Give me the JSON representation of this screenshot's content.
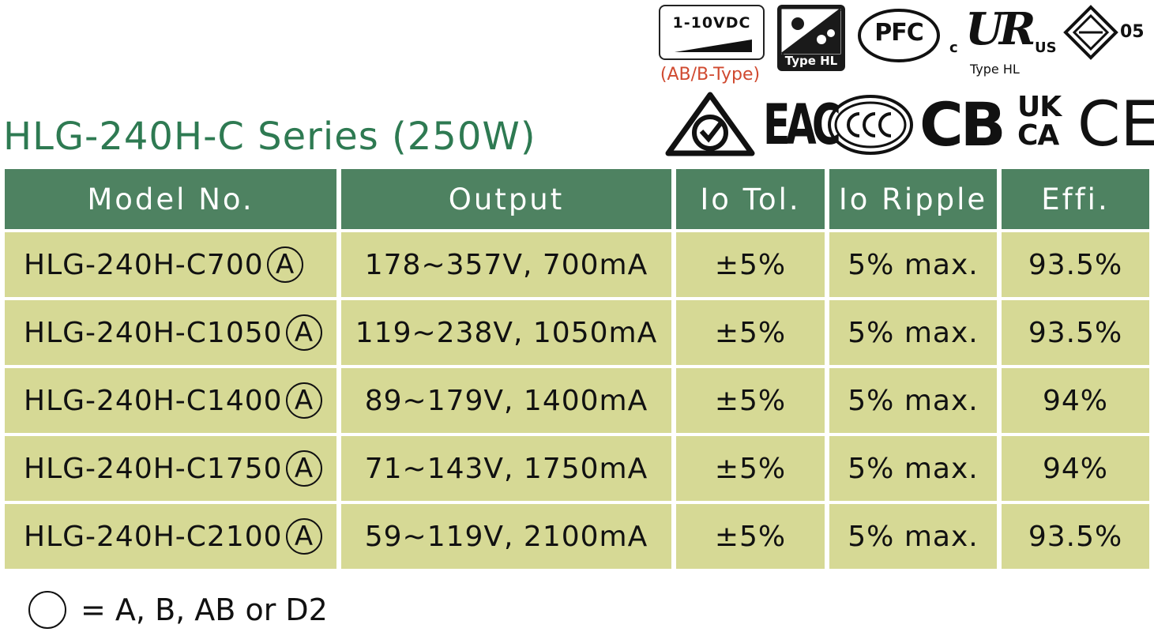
{
  "title": "HLG-240H-C Series (250W)",
  "certifications": {
    "dimming_label": "1-10VDC",
    "dimming_type": "(AB/B-Type)",
    "type_hl_label": "Type HL",
    "pfc_label": "PFC",
    "ul_c": "c",
    "ul_us": "US",
    "ul_mark": "UR",
    "ul_type": "Type HL",
    "enec_number": "05",
    "eac_label": "EAC",
    "cb_label": "CB",
    "ukca_top": "UK",
    "ukca_bottom": "CA",
    "ce_label": "CE"
  },
  "table": {
    "headers": [
      "Model No.",
      "Output",
      "Io Tol.",
      "Io Ripple",
      "Effi."
    ],
    "circled_mark": "A",
    "rows": [
      {
        "model": "HLG-240H-C700",
        "output": "178~357V, 700mA",
        "tol": "±5%",
        "ripple": "5% max.",
        "effi": "93.5%"
      },
      {
        "model": "HLG-240H-C1050",
        "output": "119~238V, 1050mA",
        "tol": "±5%",
        "ripple": "5% max.",
        "effi": "93.5%"
      },
      {
        "model": "HLG-240H-C1400",
        "output": "89~179V, 1400mA",
        "tol": "±5%",
        "ripple": "5% max.",
        "effi": "94%"
      },
      {
        "model": "HLG-240H-C1750",
        "output": "71~143V, 1750mA",
        "tol": "±5%",
        "ripple": "5% max.",
        "effi": "94%"
      },
      {
        "model": "HLG-240H-C2100",
        "output": "59~119V, 2100mA",
        "tol": "±5%",
        "ripple": "5% max.",
        "effi": "93.5%"
      }
    ]
  },
  "legend": "= A, B, AB or D2",
  "colors": {
    "header_bg": "#4e8261",
    "row_bg": "#d6d995",
    "title": "#2e7a52",
    "dim_type": "#d04a30"
  }
}
